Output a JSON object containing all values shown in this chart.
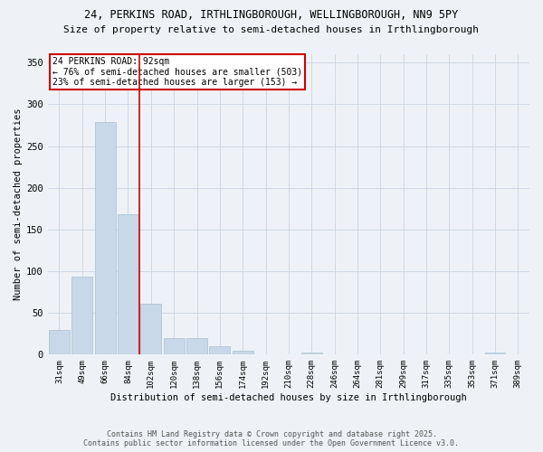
{
  "title_line1": "24, PERKINS ROAD, IRTHLINGBOROUGH, WELLINGBOROUGH, NN9 5PY",
  "title_line2": "Size of property relative to semi-detached houses in Irthlingborough",
  "xlabel": "Distribution of semi-detached houses by size in Irthlingborough",
  "ylabel": "Number of semi-detached properties",
  "categories": [
    "31sqm",
    "49sqm",
    "66sqm",
    "84sqm",
    "102sqm",
    "120sqm",
    "138sqm",
    "156sqm",
    "174sqm",
    "192sqm",
    "210sqm",
    "228sqm",
    "246sqm",
    "264sqm",
    "281sqm",
    "299sqm",
    "317sqm",
    "335sqm",
    "353sqm",
    "371sqm",
    "389sqm"
  ],
  "values": [
    30,
    93,
    279,
    168,
    61,
    20,
    20,
    10,
    5,
    0,
    0,
    3,
    0,
    0,
    0,
    0,
    0,
    0,
    0,
    2,
    0
  ],
  "bar_color": "#c8d8e8",
  "bar_edge_color": "#a8c0d0",
  "vline_x": 3.5,
  "vline_color": "#cc0000",
  "annotation_title": "24 PERKINS ROAD: 92sqm",
  "annotation_line2": "← 76% of semi-detached houses are smaller (503)",
  "annotation_line3": "23% of semi-detached houses are larger (153) →",
  "annotation_box_color": "#cc0000",
  "ylim": [
    0,
    360
  ],
  "yticks": [
    0,
    50,
    100,
    150,
    200,
    250,
    300,
    350
  ],
  "footer_line1": "Contains HM Land Registry data © Crown copyright and database right 2025.",
  "footer_line2": "Contains public sector information licensed under the Open Government Licence v3.0.",
  "bg_color": "#eef2f6",
  "plot_bg_color": "#eef2f6",
  "grid_color": "#d0d8e4"
}
